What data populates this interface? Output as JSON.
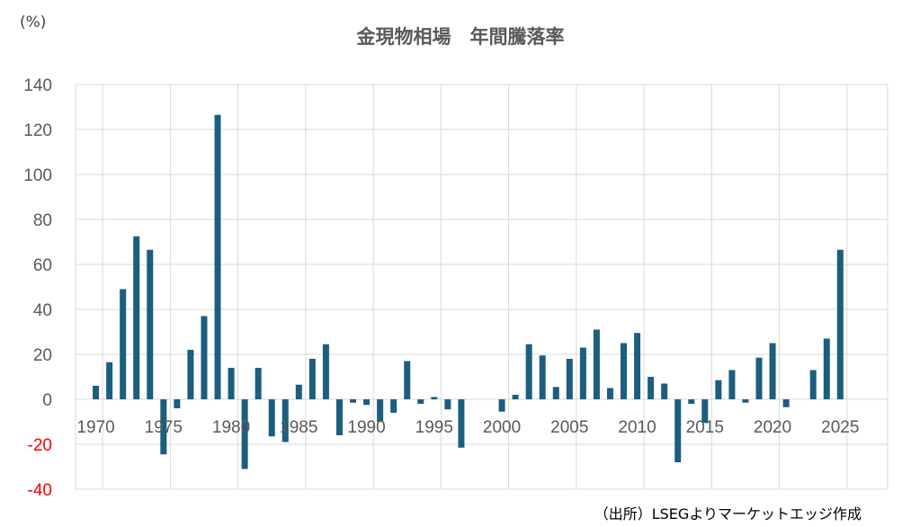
{
  "chart_data": {
    "type": "bar",
    "title": "金現物相場　年間騰落率",
    "ylabel": "(%)",
    "source": "（出所）LSEGよりマーケットエッジ作成",
    "ylim": [
      -40,
      140
    ],
    "xlim": [
      1969,
      2029
    ],
    "yticks": [
      140,
      120,
      100,
      80,
      60,
      40,
      20,
      0,
      -20,
      -40
    ],
    "xticks": [
      1970,
      1975,
      1980,
      1985,
      1990,
      1995,
      2000,
      2005,
      2010,
      2015,
      2020,
      2025
    ],
    "grid": true,
    "colors": {
      "bar": "#1b5e7e",
      "grid": "#d9d9d9",
      "axis": "#d9d9d9",
      "text": "#595959",
      "negative": "#ff0000"
    },
    "x": [
      1970,
      1971,
      1972,
      1973,
      1974,
      1975,
      1976,
      1977,
      1978,
      1979,
      1980,
      1981,
      1982,
      1983,
      1984,
      1985,
      1986,
      1987,
      1988,
      1989,
      1990,
      1991,
      1992,
      1993,
      1994,
      1995,
      1996,
      1997,
      1998,
      1999,
      2000,
      2001,
      2002,
      2003,
      2004,
      2005,
      2006,
      2007,
      2008,
      2009,
      2010,
      2011,
      2012,
      2013,
      2014,
      2015,
      2016,
      2017,
      2018,
      2019,
      2020,
      2021,
      2022,
      2023,
      2024,
      2025
    ],
    "values": [
      6,
      16.5,
      49,
      72.5,
      66.5,
      -24.5,
      -4,
      22,
      37,
      126.5,
      14,
      -31,
      14,
      -16.5,
      -19,
      6.5,
      18,
      24.5,
      -16,
      -1.5,
      -2.5,
      -10,
      -6,
      17,
      -2,
      1,
      -4.5,
      -21.5,
      0,
      0,
      -5.5,
      2,
      24.5,
      19.5,
      5.5,
      18,
      23,
      31,
      5,
      25,
      29.5,
      10,
      7,
      -28,
      -2,
      -10.5,
      8.5,
      13,
      -1.5,
      18.5,
      25,
      -3.5,
      0,
      13,
      27,
      66.5
    ]
  }
}
